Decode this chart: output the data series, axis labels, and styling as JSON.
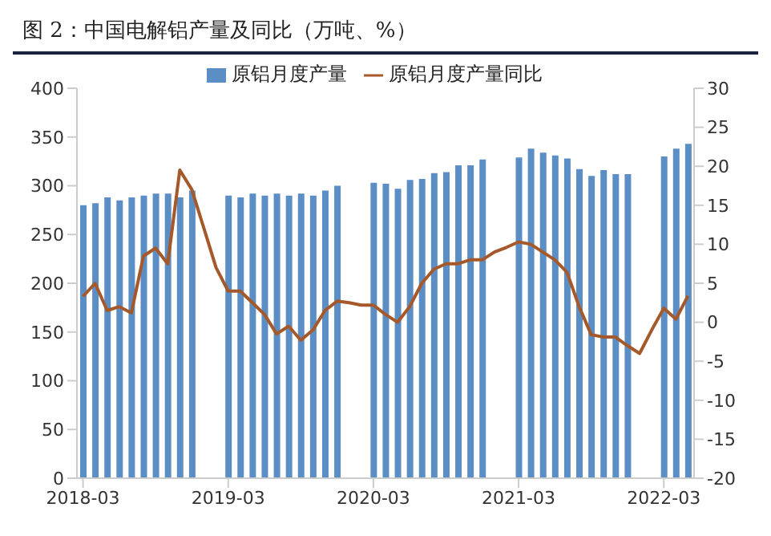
{
  "chart_data": {
    "type": "bar",
    "title": "图 2：中国电解铝产量及同比（万吨、%）",
    "categories": [
      "2018-03",
      null,
      null,
      null,
      null,
      null,
      null,
      null,
      null,
      null,
      null,
      null,
      "2019-03",
      null,
      null,
      null,
      null,
      null,
      null,
      null,
      null,
      null,
      null,
      null,
      "2020-03",
      null,
      null,
      null,
      null,
      null,
      null,
      null,
      null,
      null,
      null,
      null,
      "2021-03",
      null,
      null,
      null,
      null,
      null,
      null,
      null,
      null,
      null,
      null,
      null,
      "2022-03",
      null,
      null
    ],
    "series": [
      {
        "name": "原铝月度产量",
        "color": "#5b8ec4",
        "values": [
          280,
          282,
          288,
          285,
          288,
          290,
          292,
          292,
          288,
          295,
          null,
          null,
          290,
          288,
          292,
          290,
          292,
          290,
          292,
          290,
          295,
          300,
          null,
          null,
          303,
          302,
          297,
          306,
          307,
          313,
          314,
          321,
          321,
          327,
          null,
          null,
          329,
          338,
          334,
          331,
          328,
          317,
          310,
          316,
          312,
          312,
          null,
          null,
          330,
          338,
          343
        ]
      },
      {
        "name": "原铝月度产量同比",
        "type": "line",
        "axis": "y2",
        "color": "#a5592a",
        "values": [
          3.3,
          5,
          1.5,
          2,
          1.2,
          8.5,
          9.5,
          7.5,
          19.5,
          17,
          12,
          7,
          4,
          4,
          2.5,
          1,
          -1.5,
          -0.5,
          -2.3,
          -1,
          1.5,
          2.7,
          2.5,
          2.2,
          2.2,
          1,
          0,
          2,
          5,
          6.8,
          7.5,
          7.5,
          8,
          8,
          9,
          9.6,
          10.3,
          10,
          9,
          8,
          6.4,
          2,
          -1.6,
          -1.9,
          -1.9,
          -3,
          -4,
          -1,
          1.8,
          0.4,
          3.4
        ]
      }
    ],
    "ylim": [
      0,
      400
    ],
    "yticks": [
      0,
      50,
      100,
      150,
      200,
      250,
      300,
      350,
      400
    ],
    "y2lim": [
      -20,
      30
    ],
    "y2ticks": [
      -20,
      -15,
      -10,
      -5,
      0,
      5,
      10,
      15,
      20,
      25,
      30
    ],
    "legend": "top",
    "marker": "none"
  }
}
